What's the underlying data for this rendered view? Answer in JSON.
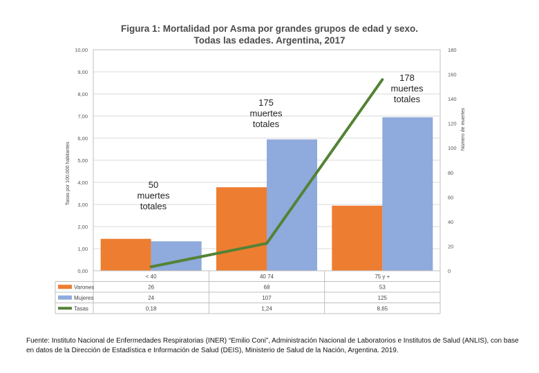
{
  "chart_data": {
    "type": "bar",
    "title_line1": "Figura 1: Mortalidad por Asma por grandes grupos de edad y sexo.",
    "title_line2": "Todas las edades. Argentina, 2017",
    "categories": [
      "< 40",
      "40 74",
      "75 y +"
    ],
    "series": [
      {
        "name": "Varones",
        "type": "bar",
        "axis": "right",
        "color": "#ed7d31",
        "values": [
          26,
          68,
          53
        ]
      },
      {
        "name": "Mujeres",
        "type": "bar",
        "axis": "right",
        "color": "#8faadc",
        "values": [
          24,
          107,
          125
        ]
      },
      {
        "name": "Tasas",
        "type": "line",
        "axis": "left",
        "color": "#548235",
        "values": [
          0.18,
          1.24,
          8.65
        ]
      }
    ],
    "table_values": {
      "Varones": [
        "26",
        "68",
        "53"
      ],
      "Mujeres": [
        "24",
        "107",
        "125"
      ],
      "Tasas": [
        "0,18",
        "1,24",
        "8,65"
      ]
    },
    "left_axis": {
      "label": "Tasas por 100.000 habitantes",
      "range": [
        0,
        10
      ],
      "ticks": [
        "0,00",
        "1,00",
        "2,00",
        "3,00",
        "4,00",
        "5,00",
        "6,00",
        "7,00",
        "8,00",
        "9,00",
        "10,00"
      ]
    },
    "right_axis": {
      "label": "Número de muertes",
      "range": [
        0,
        180
      ],
      "ticks": [
        "0",
        "20",
        "40",
        "60",
        "80",
        "100",
        "120",
        "140",
        "160",
        "180"
      ]
    },
    "annotations": [
      {
        "category": "< 40",
        "lines": [
          "50",
          "muertes",
          "totales"
        ]
      },
      {
        "category": "40 74",
        "lines": [
          "175",
          "muertes",
          "totales"
        ]
      },
      {
        "category": "75 y +",
        "lines": [
          "178",
          "muertes",
          "totales"
        ]
      }
    ]
  },
  "source_note": "Fuente: Instituto Nacional de Enfermedades Respiratorias (INER) “Emilio Coni”, Administración Nacional de Laboratorios e Institutos de Salud (ANLIS), con base en datos de la Dirección de Estadística e Información de Salud (DEIS), Ministerio de Salud de la Nación, Argentina. 2019."
}
